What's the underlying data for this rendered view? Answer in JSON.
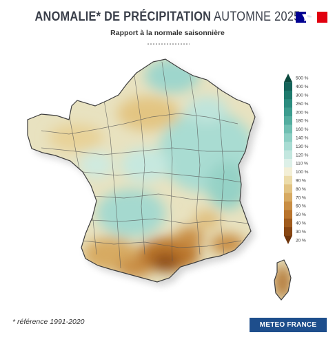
{
  "header": {
    "title_bold": "ANOMALIE* DE PRÉCIPITATION",
    "title_light": "AUTOMNE 2025",
    "subtitle": "Rapport à la normale saisonnière"
  },
  "legend": {
    "labels": [
      "500 %",
      "400 %",
      "300 %",
      "250 %",
      "200 %",
      "180 %",
      "160 %",
      "140 %",
      "130 %",
      "120 %",
      "110 %",
      "100 %",
      "90 %",
      "80 %",
      "70 %",
      "60 %",
      "50 %",
      "40 %",
      "30 %",
      "20 %"
    ],
    "colors": [
      "#0c4a3e",
      "#14635a",
      "#1e7a6d",
      "#2b8c7f",
      "#3c9c8e",
      "#53ad9f",
      "#70bfb2",
      "#8dcfc4",
      "#a8dcd3",
      "#c3e7df",
      "#ddf0e8",
      "#f3efd6",
      "#ecdcaa",
      "#e2c484",
      "#d7aa62",
      "#c98e44",
      "#b9742c",
      "#a05b1c",
      "#884612",
      "#6e340b"
    ]
  },
  "footer": {
    "footnote": "* référence 1991-2020",
    "brand": "METEO FRANCE"
  },
  "colors": {
    "brand_blue": "#1e4e8c",
    "republic_blue": "#000091",
    "republic_red": "#e1000f"
  },
  "icons": [
    "republique-francaise-logo"
  ]
}
